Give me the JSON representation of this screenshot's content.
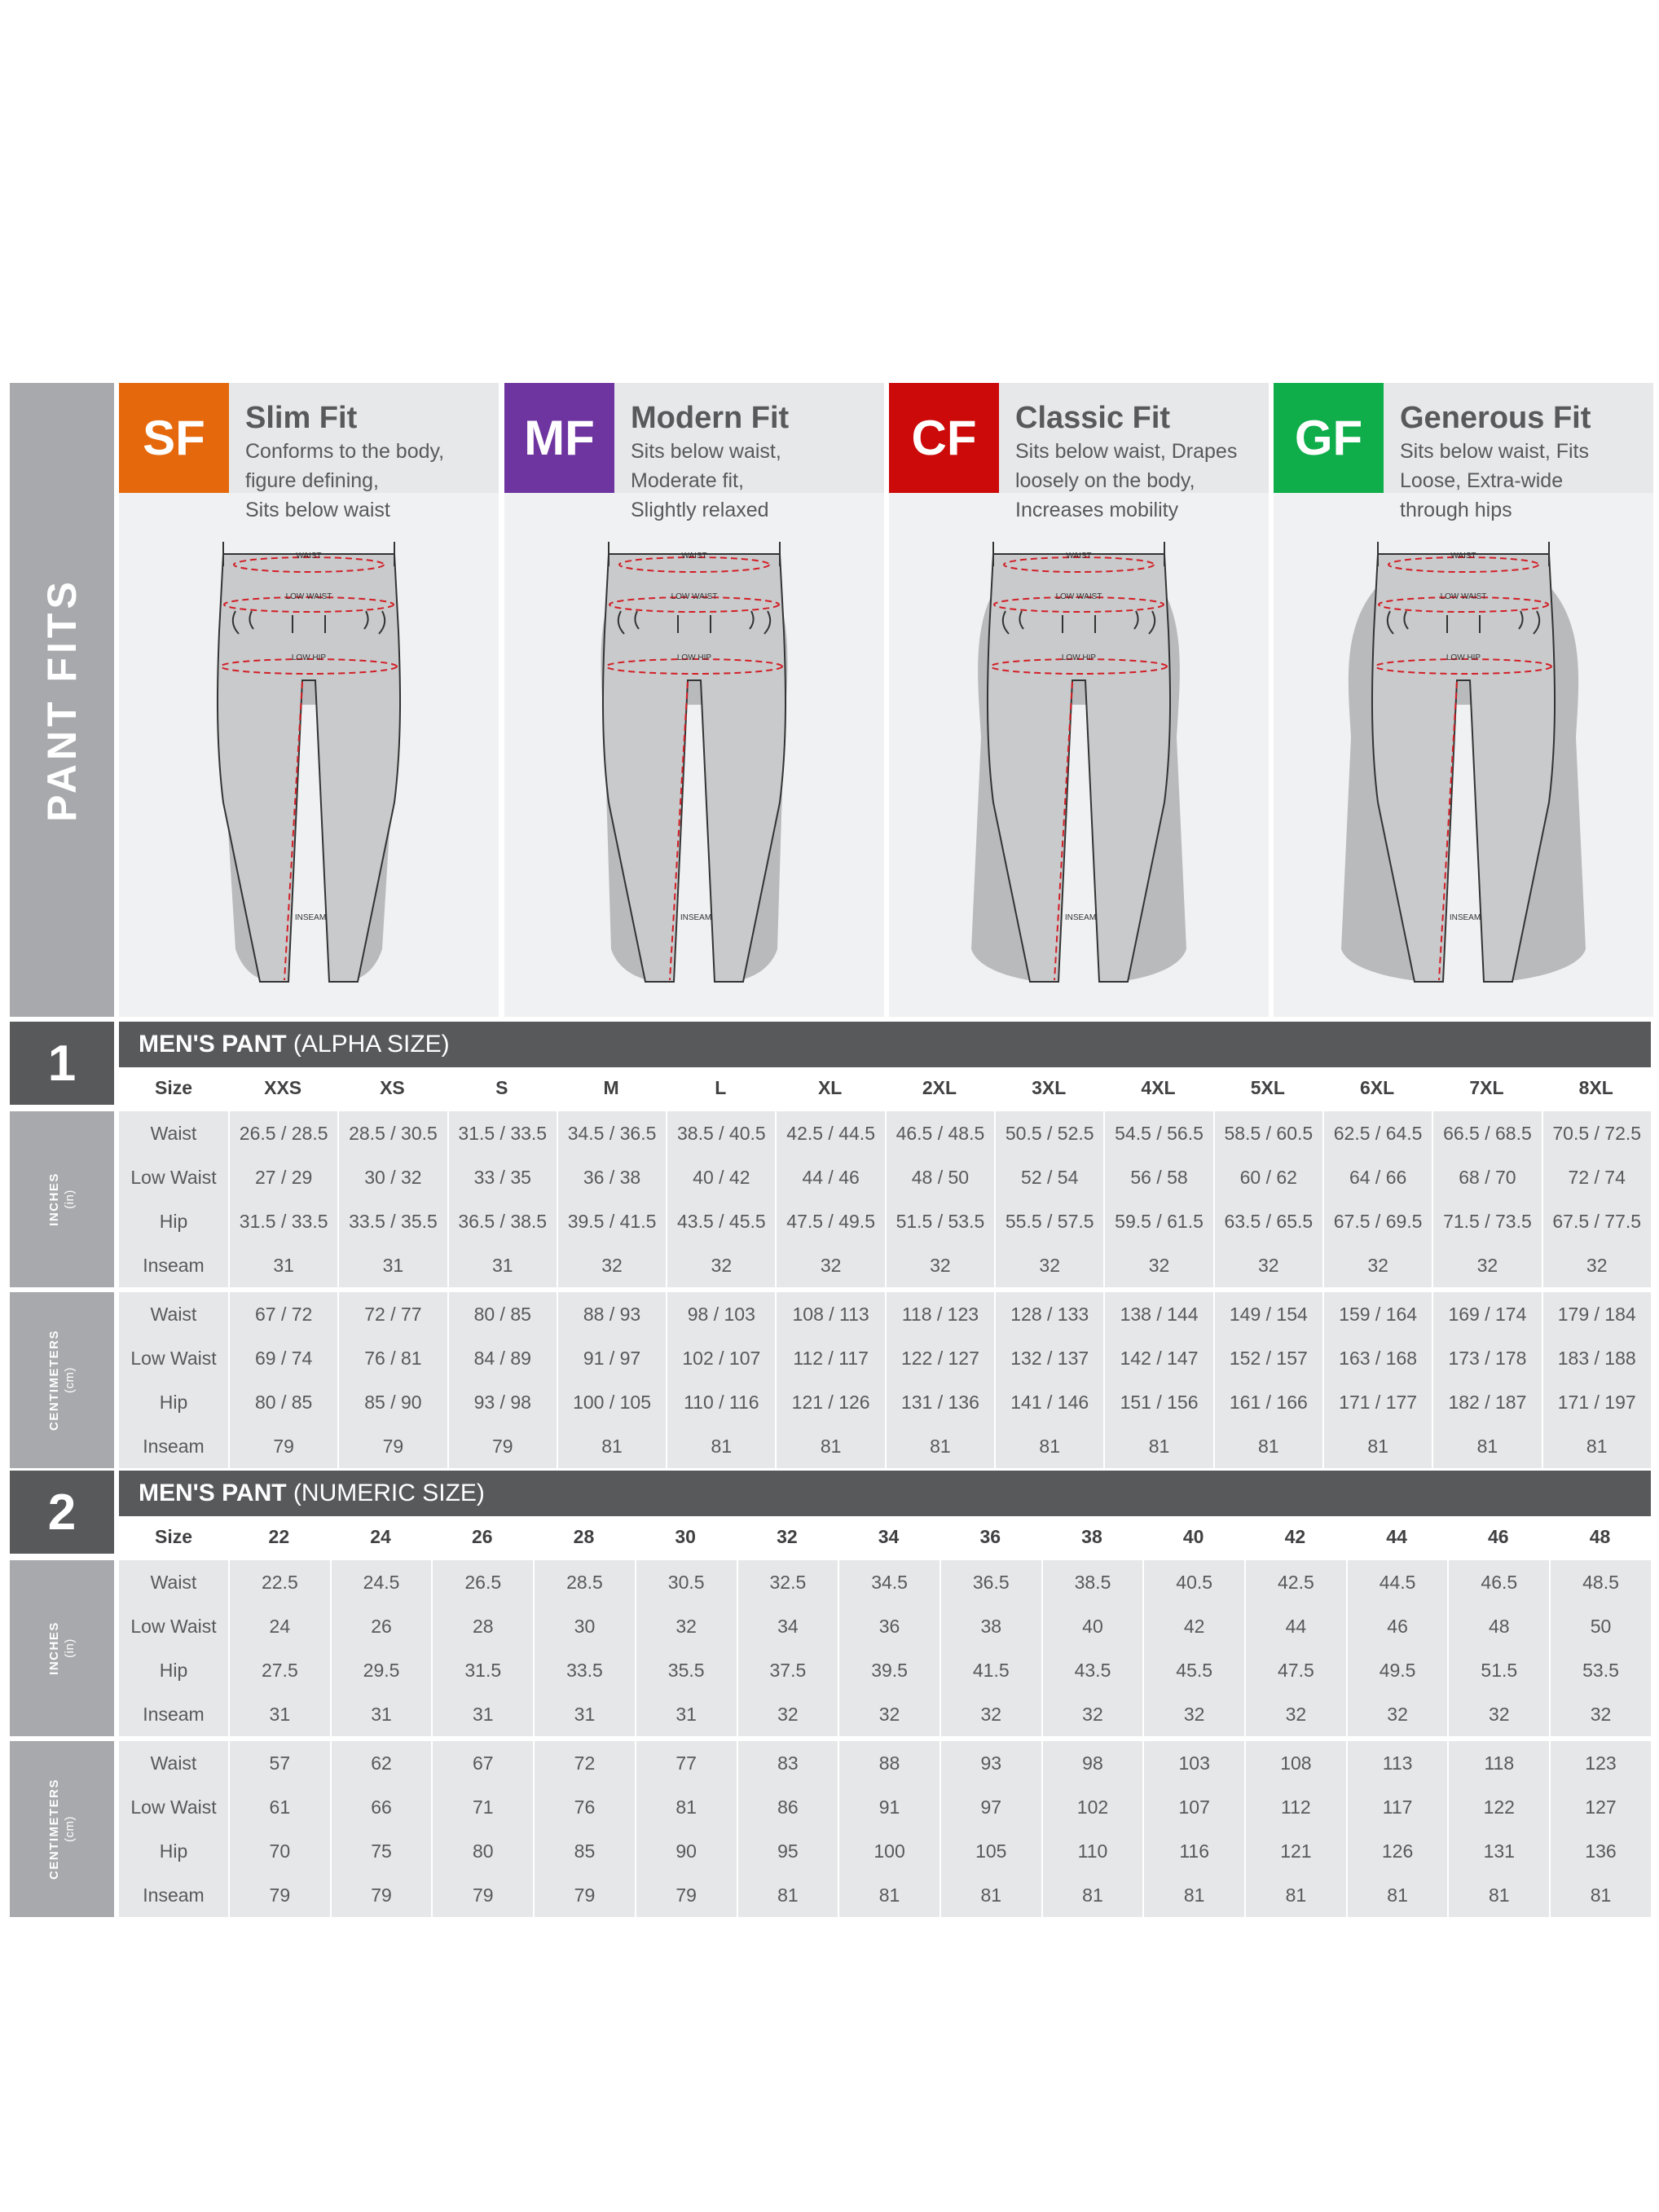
{
  "section_label": "PANT FITS",
  "fits": [
    {
      "code": "SF",
      "name": "Slim Fit",
      "desc": [
        "Conforms to the body,",
        "figure defining,",
        "Sits below waist"
      ],
      "color": "#e5690c",
      "labels": {
        "waist": "WAIST",
        "low_waist": "LOW WAIST",
        "low_hip": "LOW HIP",
        "inseam": "INSEAM"
      }
    },
    {
      "code": "MF",
      "name": "Modern Fit",
      "desc": [
        "Sits below waist,",
        "Moderate fit,",
        "Slightly relaxed"
      ],
      "color": "#6e35a0",
      "labels": {
        "waist": "WAIST",
        "low_waist": "LOW WAIST",
        "low_hip": "LOW HIP",
        "inseam": "INSEAM"
      }
    },
    {
      "code": "CF",
      "name": "Classic Fit",
      "desc": [
        "Sits below waist, Drapes",
        "loosely on the body,",
        "Increases mobility"
      ],
      "color": "#cc0a0a",
      "labels": {
        "waist": "WAIST",
        "low_waist": "LOW WAIST",
        "low_hip": "LOW HIP",
        "inseam": "INSEAM"
      }
    },
    {
      "code": "GF",
      "name": "Generous Fit",
      "desc": [
        "Sits below waist, Fits",
        "Loose, Extra-wide",
        "through hips"
      ],
      "color": "#0fae4b",
      "labels": {
        "waist": "WAIST",
        "low_waist": "LOW WAIST",
        "low_hip": "LOW HIP",
        "inseam": "INSEAM"
      }
    }
  ],
  "tables": [
    {
      "number": "1",
      "title_bold": "MEN'S PANT",
      "title_rest": " (ALPHA SIZE)",
      "size_label": "Size",
      "sizes": [
        "XXS",
        "XS",
        "S",
        "M",
        "L",
        "XL",
        "2XL",
        "3XL",
        "4XL",
        "5XL",
        "6XL",
        "7XL",
        "8XL"
      ],
      "inches": {
        "unit": "INCHES",
        "unit_abbr": "(in)",
        "rows": [
          {
            "label": "Waist",
            "values": [
              "26.5 / 28.5",
              "28.5 / 30.5",
              "31.5 / 33.5",
              "34.5 / 36.5",
              "38.5 / 40.5",
              "42.5 / 44.5",
              "46.5 / 48.5",
              "50.5 / 52.5",
              "54.5 / 56.5",
              "58.5 / 60.5",
              "62.5 / 64.5",
              "66.5 / 68.5",
              "70.5 / 72.5"
            ]
          },
          {
            "label": "Low Waist",
            "values": [
              "27 / 29",
              "30 / 32",
              "33 / 35",
              "36 / 38",
              "40 / 42",
              "44 / 46",
              "48 / 50",
              "52 / 54",
              "56 / 58",
              "60 / 62",
              "64 / 66",
              "68 / 70",
              "72 / 74"
            ]
          },
          {
            "label": "Hip",
            "values": [
              "31.5 / 33.5",
              "33.5 / 35.5",
              "36.5 / 38.5",
              "39.5 / 41.5",
              "43.5 / 45.5",
              "47.5 / 49.5",
              "51.5 / 53.5",
              "55.5 / 57.5",
              "59.5 / 61.5",
              "63.5 / 65.5",
              "67.5 / 69.5",
              "71.5 / 73.5",
              "67.5 / 77.5"
            ]
          },
          {
            "label": "Inseam",
            "values": [
              "31",
              "31",
              "31",
              "32",
              "32",
              "32",
              "32",
              "32",
              "32",
              "32",
              "32",
              "32",
              "32"
            ]
          }
        ]
      },
      "centimeters": {
        "unit": "CENTIMETERS",
        "unit_abbr": "(cm)",
        "rows": [
          {
            "label": "Waist",
            "values": [
              "67 / 72",
              "72 / 77",
              "80 / 85",
              "88 / 93",
              "98 / 103",
              "108 / 113",
              "118 / 123",
              "128 / 133",
              "138 / 144",
              "149 / 154",
              "159 / 164",
              "169 / 174",
              "179 / 184"
            ]
          },
          {
            "label": "Low Waist",
            "values": [
              "69 / 74",
              "76 / 81",
              "84 / 89",
              "91 / 97",
              "102 / 107",
              "112 / 117",
              "122 / 127",
              "132 / 137",
              "142 / 147",
              "152 / 157",
              "163 / 168",
              "173 / 178",
              "183 / 188"
            ]
          },
          {
            "label": "Hip",
            "values": [
              "80 / 85",
              "85 / 90",
              "93 / 98",
              "100 / 105",
              "110 / 116",
              "121 / 126",
              "131 / 136",
              "141 / 146",
              "151 / 156",
              "161 / 166",
              "171 / 177",
              "182 / 187",
              "171 / 197"
            ]
          },
          {
            "label": "Inseam",
            "values": [
              "79",
              "79",
              "79",
              "81",
              "81",
              "81",
              "81",
              "81",
              "81",
              "81",
              "81",
              "81",
              "81"
            ]
          }
        ]
      }
    },
    {
      "number": "2",
      "title_bold": "MEN'S PANT",
      "title_rest": " (NUMERIC SIZE)",
      "size_label": "Size",
      "sizes": [
        "22",
        "24",
        "26",
        "28",
        "30",
        "32",
        "34",
        "36",
        "38",
        "40",
        "42",
        "44",
        "46",
        "48"
      ],
      "inches": {
        "unit": "INCHES",
        "unit_abbr": "(in)",
        "rows": [
          {
            "label": "Waist",
            "values": [
              "22.5",
              "24.5",
              "26.5",
              "28.5",
              "30.5",
              "32.5",
              "34.5",
              "36.5",
              "38.5",
              "40.5",
              "42.5",
              "44.5",
              "46.5",
              "48.5"
            ]
          },
          {
            "label": "Low Waist",
            "values": [
              "24",
              "26",
              "28",
              "30",
              "32",
              "34",
              "36",
              "38",
              "40",
              "42",
              "44",
              "46",
              "48",
              "50"
            ]
          },
          {
            "label": "Hip",
            "values": [
              "27.5",
              "29.5",
              "31.5",
              "33.5",
              "35.5",
              "37.5",
              "39.5",
              "41.5",
              "43.5",
              "45.5",
              "47.5",
              "49.5",
              "51.5",
              "53.5"
            ]
          },
          {
            "label": "Inseam",
            "values": [
              "31",
              "31",
              "31",
              "31",
              "31",
              "32",
              "32",
              "32",
              "32",
              "32",
              "32",
              "32",
              "32",
              "32"
            ]
          }
        ]
      },
      "centimeters": {
        "unit": "CENTIMETERS",
        "unit_abbr": "(cm)",
        "rows": [
          {
            "label": "Waist",
            "values": [
              "57",
              "62",
              "67",
              "72",
              "77",
              "83",
              "88",
              "93",
              "98",
              "103",
              "108",
              "113",
              "118",
              "123"
            ]
          },
          {
            "label": "Low Waist",
            "values": [
              "61",
              "66",
              "71",
              "76",
              "81",
              "86",
              "91",
              "97",
              "102",
              "107",
              "112",
              "117",
              "122",
              "127"
            ]
          },
          {
            "label": "Hip",
            "values": [
              "70",
              "75",
              "80",
              "85",
              "90",
              "95",
              "100",
              "105",
              "110",
              "116",
              "121",
              "126",
              "131",
              "136"
            ]
          },
          {
            "label": "Inseam",
            "values": [
              "79",
              "79",
              "79",
              "79",
              "79",
              "81",
              "81",
              "81",
              "81",
              "81",
              "81",
              "81",
              "81",
              "81"
            ]
          }
        ]
      }
    }
  ]
}
